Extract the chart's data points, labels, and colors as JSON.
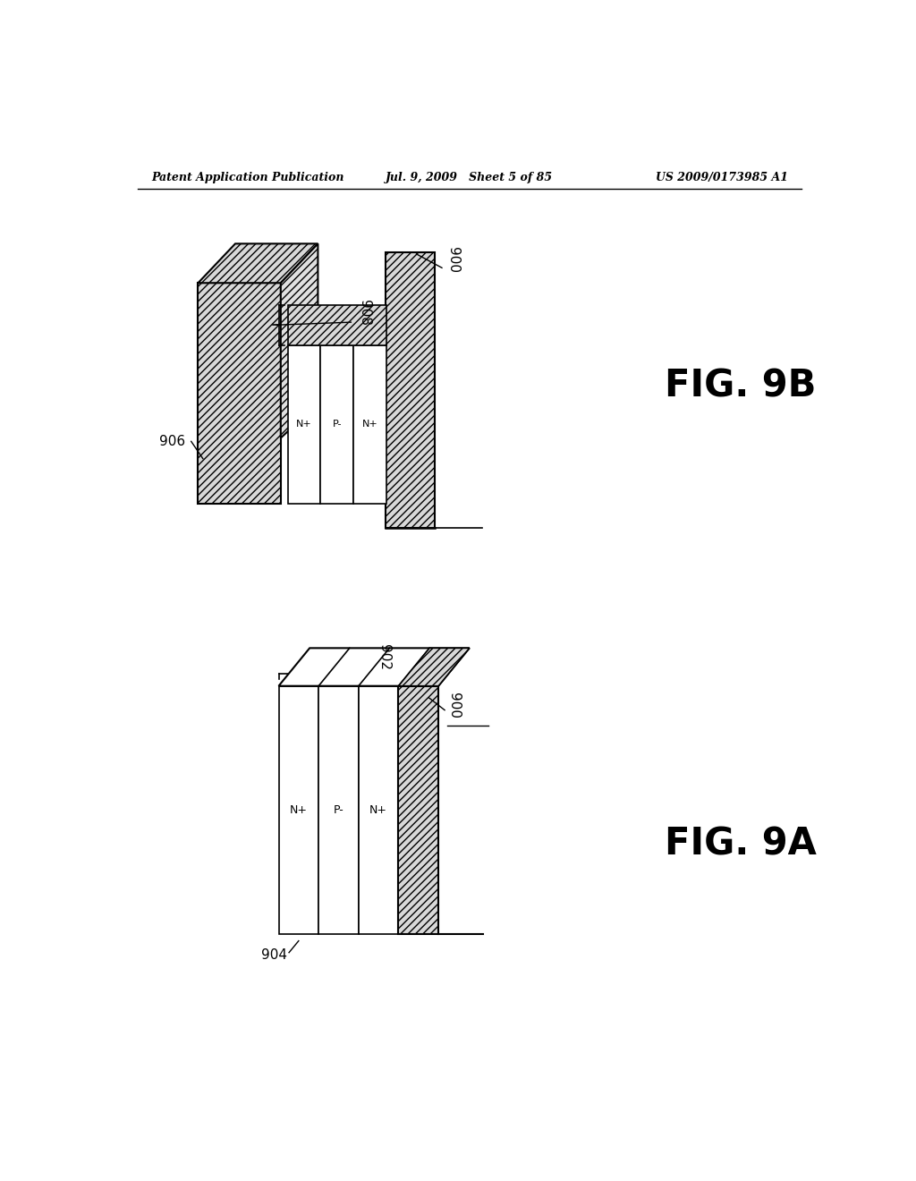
{
  "title_left": "Patent Application Publication",
  "title_center": "Jul. 9, 2009   Sheet 5 of 85",
  "title_right": "US 2009/0173985 A1",
  "background_color": "#ffffff",
  "fig9a_label": "FIG. 9A",
  "fig9b_label": "FIG. 9B",
  "ref_900": "900",
  "ref_902": "902",
  "ref_904": "904",
  "ref_906": "906",
  "ref_908": "908"
}
